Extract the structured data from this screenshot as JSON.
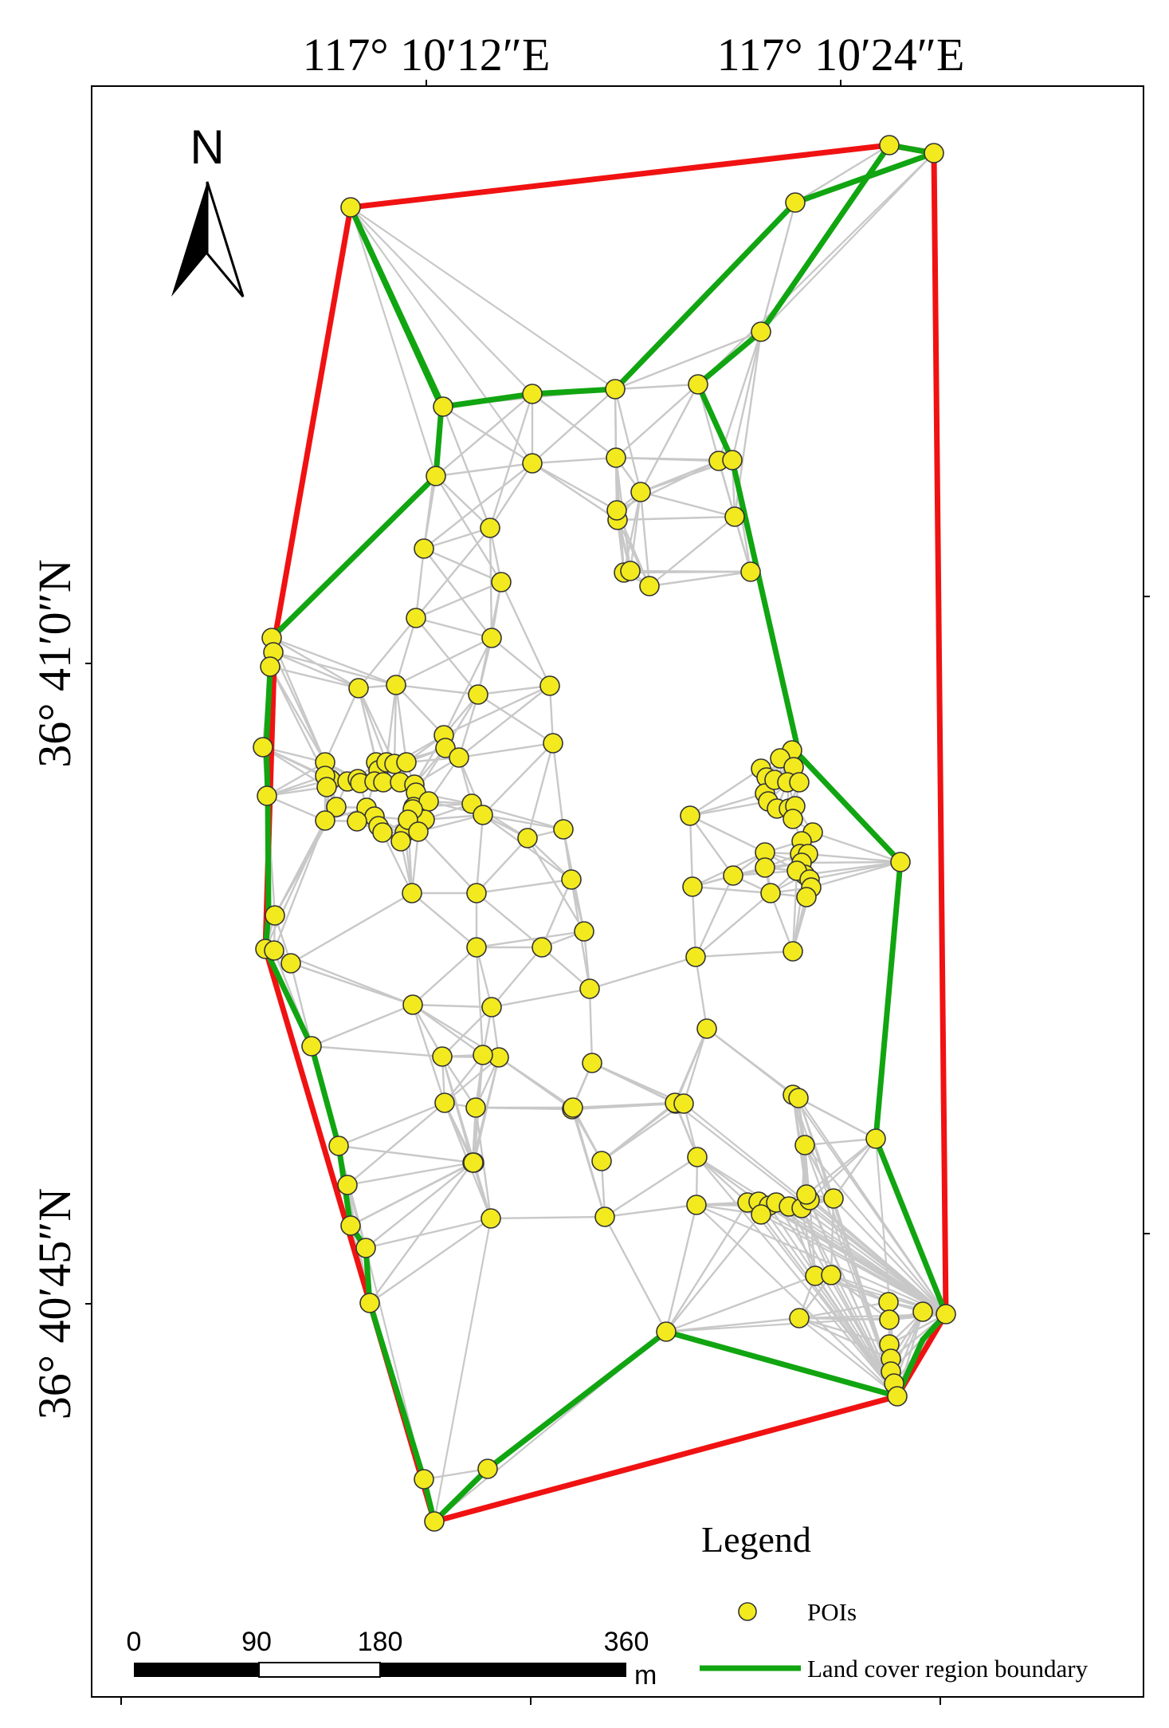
{
  "coords": {
    "top": [
      "117°  10′12″E",
      "117°  10′24″E"
    ],
    "left": [
      "36°  41′0″N",
      "36°  40′45″N"
    ]
  },
  "north_label": "N",
  "legend": {
    "title": "Legend",
    "items": [
      {
        "label": "POIs",
        "color": "#f2ea1e"
      },
      {
        "label": "Land cover region boundary",
        "color": "#11a511"
      }
    ]
  },
  "scale": {
    "ticks": [
      "0",
      "90",
      "180",
      "360"
    ],
    "unit": "m"
  },
  "colors": {
    "convex_hull": "#f01212",
    "boundary": "#11a511",
    "triangulation": "#c8c8c8",
    "poi_fill": "#f2ea1e",
    "poi_stroke": "#333333"
  }
}
